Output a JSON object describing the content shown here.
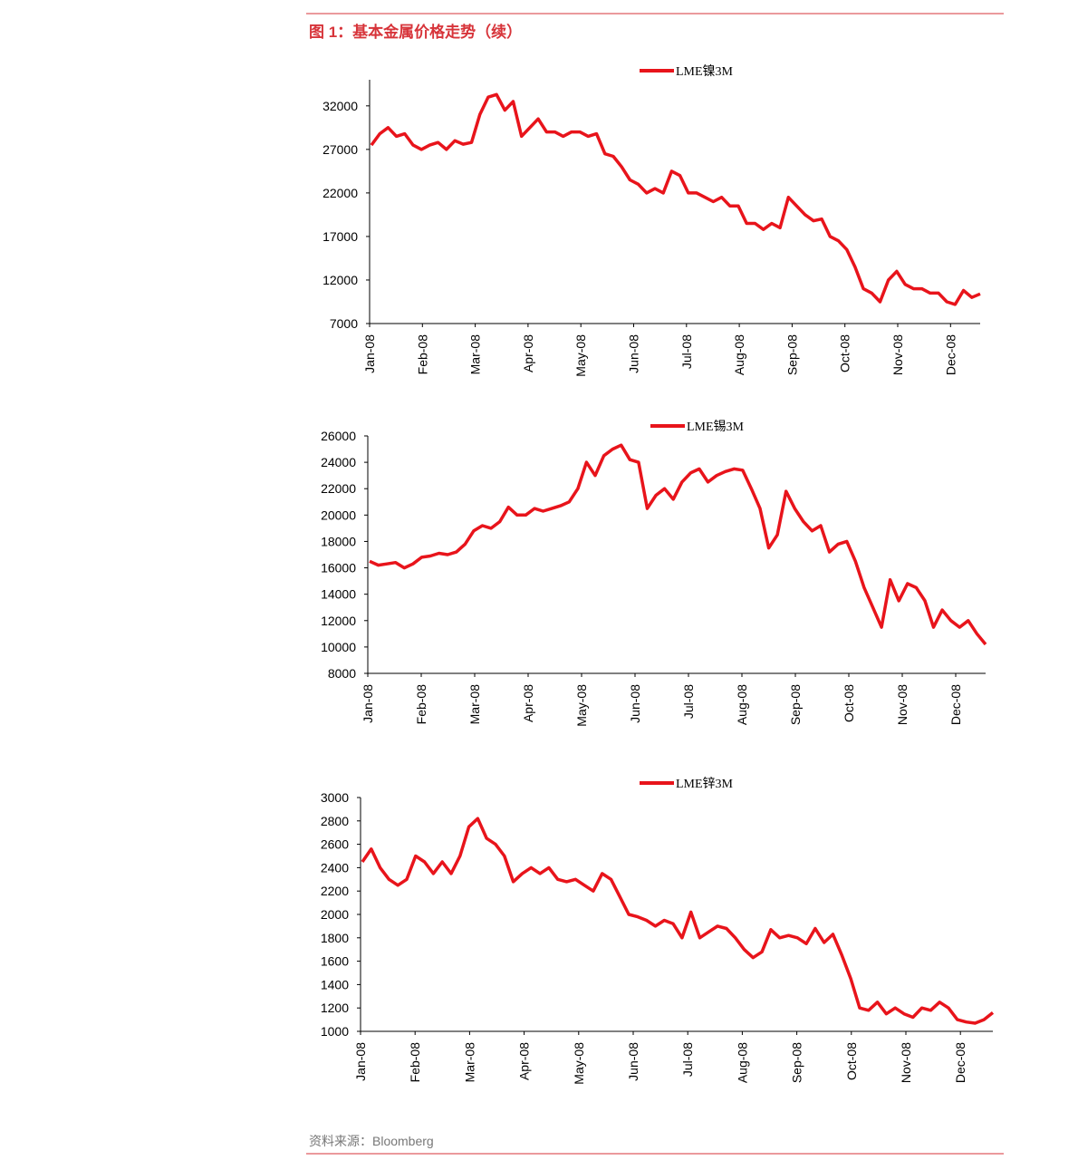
{
  "title": "图 1：基本金属价格走势（续）",
  "source": "资料来源：Bloomberg",
  "chart_data": [
    {
      "type": "line",
      "xticks": [
        "Jan-08",
        "Feb-08",
        "Mar-08",
        "Apr-08",
        "May-08",
        "Jun-08",
        "Jul-08",
        "Aug-08",
        "Sep-08",
        "Oct-08",
        "Nov-08",
        "Dec-08"
      ],
      "ylim": [
        7000,
        35000
      ],
      "yticks": [
        7000,
        12000,
        17000,
        22000,
        27000,
        32000
      ],
      "series": [
        {
          "name": "LME镍3M",
          "color": "#e8141b",
          "values": [
            27500,
            28800,
            29500,
            28500,
            28800,
            27500,
            27000,
            27500,
            27800,
            27000,
            28000,
            27600,
            27800,
            31000,
            33000,
            33300,
            31500,
            32500,
            28500,
            29500,
            30500,
            29000,
            29000,
            28500,
            29000,
            29000,
            28500,
            28800,
            26500,
            26200,
            25000,
            23500,
            23000,
            22000,
            22500,
            22000,
            24500,
            24000,
            22000,
            22000,
            21500,
            21000,
            21500,
            20500,
            20500,
            18500,
            18500,
            17800,
            18500,
            18000,
            21500,
            20500,
            19500,
            18800,
            19000,
            17000,
            16500,
            15500,
            13500,
            11000,
            10500,
            9500,
            12000,
            13000,
            11500,
            11000,
            11000,
            10500,
            10500,
            9500,
            9200,
            10800,
            10000,
            10400
          ]
        }
      ]
    },
    {
      "type": "line",
      "xticks": [
        "Jan-08",
        "Feb-08",
        "Mar-08",
        "Apr-08",
        "May-08",
        "Jun-08",
        "Jul-08",
        "Aug-08",
        "Sep-08",
        "Oct-08",
        "Nov-08",
        "Dec-08"
      ],
      "ylim": [
        8000,
        26000
      ],
      "yticks": [
        8000,
        10000,
        12000,
        14000,
        16000,
        18000,
        20000,
        22000,
        24000,
        26000
      ],
      "series": [
        {
          "name": "LME锡3M",
          "color": "#e8141b",
          "values": [
            16500,
            16200,
            16300,
            16400,
            16000,
            16300,
            16800,
            16900,
            17100,
            17000,
            17200,
            17800,
            18800,
            19200,
            19000,
            19500,
            20600,
            20000,
            20000,
            20500,
            20300,
            20500,
            20700,
            21000,
            22000,
            24000,
            23000,
            24500,
            25000,
            25300,
            24200,
            24000,
            20500,
            21500,
            22000,
            21200,
            22500,
            23200,
            23500,
            22500,
            23000,
            23300,
            23500,
            23400,
            22000,
            20500,
            17500,
            18500,
            21800,
            20500,
            19500,
            18800,
            19200,
            17200,
            17800,
            18000,
            16500,
            14500,
            13000,
            11500,
            15100,
            13500,
            14800,
            14500,
            13500,
            11500,
            12800,
            12000,
            11500,
            12000,
            11000,
            10200
          ]
        }
      ]
    },
    {
      "type": "line",
      "xticks": [
        "Jan-08",
        "Feb-08",
        "Mar-08",
        "Apr-08",
        "May-08",
        "Jun-08",
        "Jul-08",
        "Aug-08",
        "Sep-08",
        "Oct-08",
        "Nov-08",
        "Dec-08"
      ],
      "ylim": [
        1000,
        3000
      ],
      "yticks": [
        1000,
        1200,
        1400,
        1600,
        1800,
        2000,
        2200,
        2400,
        2600,
        2800,
        3000
      ],
      "series": [
        {
          "name": "LME锌3M",
          "color": "#e8141b",
          "values": [
            2450,
            2560,
            2400,
            2300,
            2250,
            2300,
            2500,
            2450,
            2350,
            2450,
            2350,
            2500,
            2750,
            2820,
            2650,
            2600,
            2500,
            2280,
            2350,
            2400,
            2350,
            2400,
            2300,
            2280,
            2300,
            2250,
            2200,
            2350,
            2300,
            2150,
            2000,
            1980,
            1950,
            1900,
            1950,
            1920,
            1800,
            2020,
            1800,
            1850,
            1900,
            1880,
            1800,
            1700,
            1630,
            1680,
            1870,
            1800,
            1820,
            1800,
            1750,
            1880,
            1760,
            1830,
            1650,
            1450,
            1200,
            1180,
            1250,
            1150,
            1200,
            1150,
            1120,
            1200,
            1180,
            1250,
            1200,
            1100,
            1080,
            1070,
            1100,
            1160
          ]
        }
      ]
    }
  ]
}
